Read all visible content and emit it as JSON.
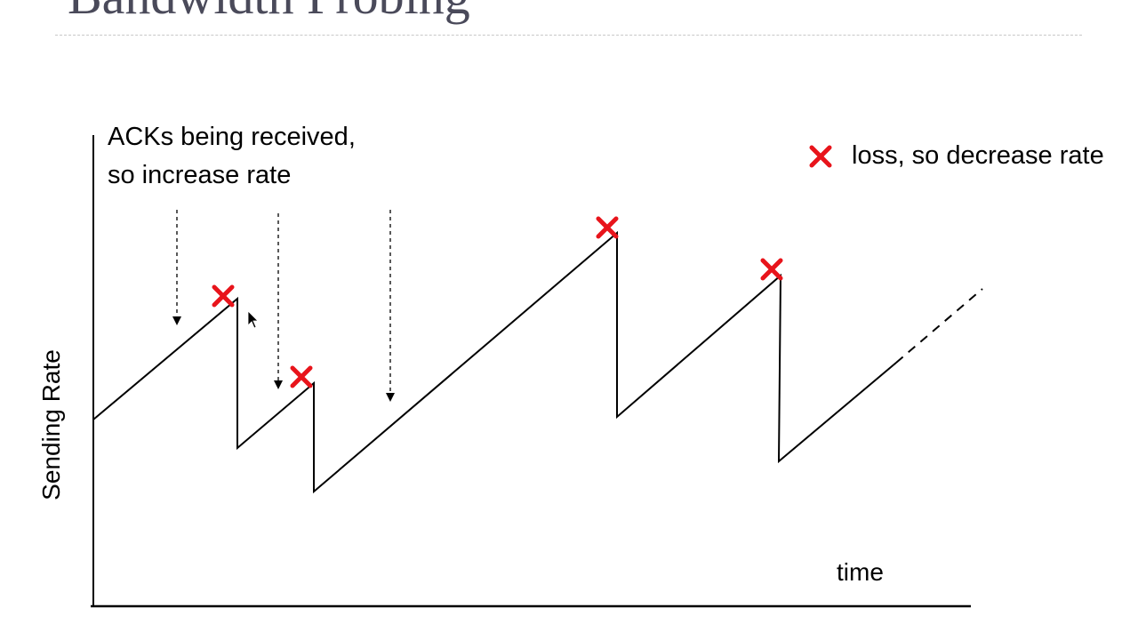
{
  "slide": {
    "title": "Bandwidth Probing"
  },
  "annotation": {
    "line1": "ACKs being received,",
    "line2": "so increase rate"
  },
  "legend": {
    "marker": "x",
    "text": "loss, so decrease rate",
    "marker_color": "#e8141b"
  },
  "axes": {
    "xlabel": "time",
    "ylabel": "Sending Rate"
  },
  "icons": {
    "loss_marker": "x-mark-icon",
    "cursor": "mouse-pointer-icon"
  },
  "colors": {
    "line": "#000000",
    "loss": "#e8141b",
    "title": "#4a4a5a"
  }
}
